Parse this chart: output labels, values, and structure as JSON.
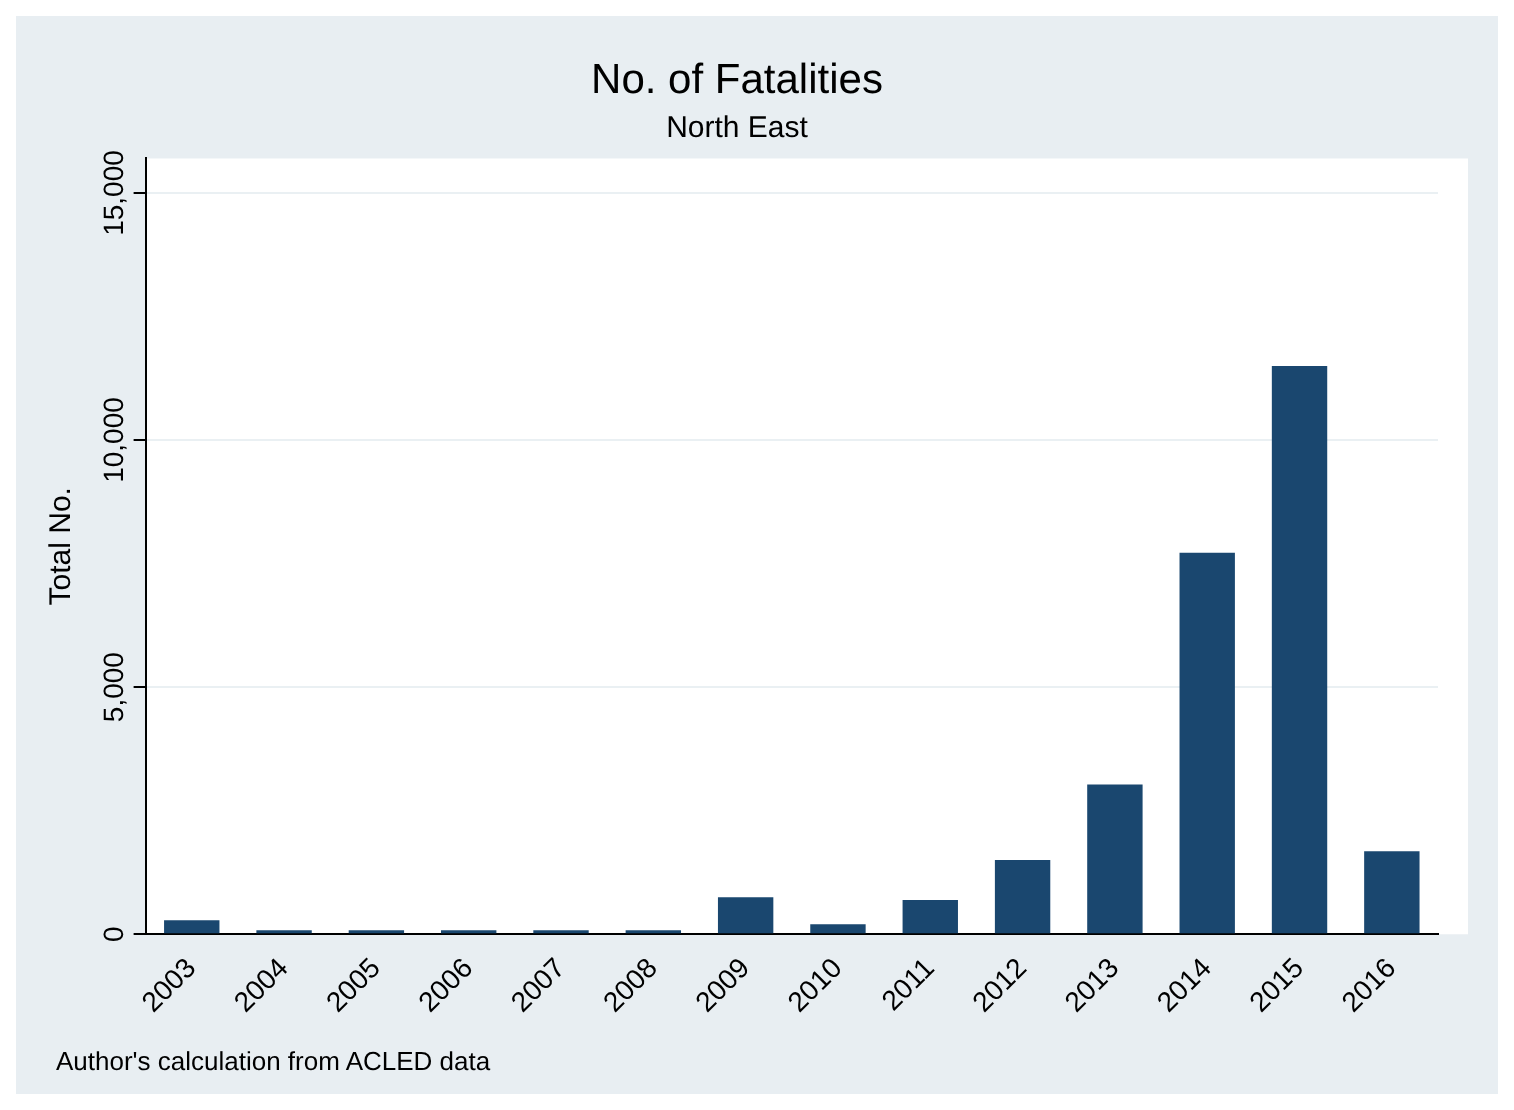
{
  "chart_data": {
    "type": "bar",
    "title": "No. of Fatalities",
    "subtitle": "North East",
    "ylabel": "Total No.",
    "categories": [
      "2003",
      "2004",
      "2005",
      "2006",
      "2007",
      "2008",
      "2009",
      "2010",
      "2011",
      "2012",
      "2013",
      "2014",
      "2015",
      "2016"
    ],
    "values": [
      280,
      80,
      80,
      80,
      80,
      80,
      750,
      200,
      690,
      1500,
      3030,
      7720,
      11500,
      1680
    ],
    "color": "#1a476f",
    "ylim": [
      0,
      15700
    ],
    "yticks": [
      {
        "value": 0,
        "label": "0"
      },
      {
        "value": 5000,
        "label": "5,000"
      },
      {
        "value": 10000,
        "label": "10,000"
      },
      {
        "value": 15000,
        "label": "15,000"
      }
    ],
    "grid": "y",
    "annotations": [
      "Author's calculation from ACLED data"
    ]
  }
}
